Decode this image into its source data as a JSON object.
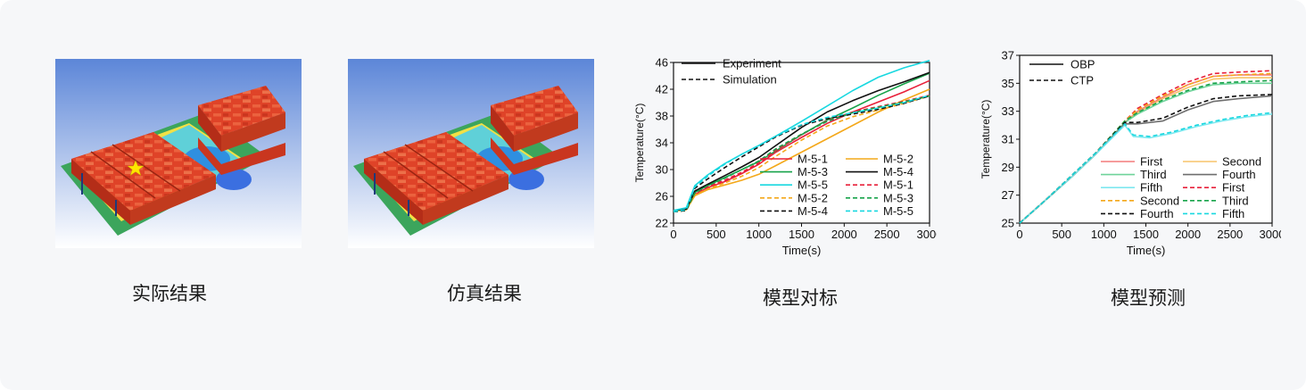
{
  "captions": {
    "p1": "实际结果",
    "p2": "仿真结果",
    "p3": "模型对标",
    "p4": "模型预测"
  },
  "colors": {
    "red": "#e8203a",
    "orange": "#f4a81a",
    "green": "#17a34a",
    "black": "#111111",
    "cyan": "#18d8e0",
    "gray": "#6e6e6e",
    "salmon": "#f47b7b",
    "lightorange": "#f7c46a",
    "lightgreen": "#6fd39a",
    "lightcyan": "#7ee8ef"
  },
  "chart_data": [
    {
      "type": "line",
      "title": "",
      "xlabel": "Time(s)",
      "ylabel": "Temperature(°C)",
      "xlim": [
        0,
        3000
      ],
      "ylim": [
        22,
        46
      ],
      "xticks": [
        0,
        500,
        1000,
        1500,
        2000,
        2500,
        3000
      ],
      "yticks": [
        22,
        26,
        30,
        34,
        38,
        42,
        46
      ],
      "legend_top": [
        "Experiment",
        "Simulation"
      ],
      "series": [
        {
          "name": "M-5-1",
          "style": "solid",
          "color": "#e8203a",
          "x": [
            0,
            150,
            250,
            400,
            600,
            800,
            1000,
            1200,
            1500,
            1800,
            2100,
            2400,
            2700,
            3000
          ],
          "y": [
            23.9,
            24.1,
            26.3,
            27.3,
            28.2,
            29.4,
            30.8,
            32.6,
            34.8,
            36.9,
            38.6,
            40.1,
            41.6,
            43.3
          ]
        },
        {
          "name": "M-5-2",
          "style": "solid",
          "color": "#f4a81a",
          "x": [
            0,
            150,
            250,
            400,
            600,
            800,
            1000,
            1200,
            1500,
            1800,
            2100,
            2400,
            2700,
            3000
          ],
          "y": [
            23.8,
            24.0,
            26.1,
            27.0,
            27.7,
            28.4,
            29.3,
            30.6,
            32.6,
            34.6,
            36.6,
            38.6,
            40.4,
            42.0
          ]
        },
        {
          "name": "M-5-3",
          "style": "solid",
          "color": "#17a34a",
          "x": [
            0,
            150,
            250,
            400,
            600,
            800,
            1000,
            1200,
            1500,
            1800,
            2100,
            2400,
            2700,
            3000
          ],
          "y": [
            23.9,
            24.1,
            26.6,
            27.6,
            28.8,
            30.0,
            31.2,
            32.8,
            35.2,
            37.4,
            39.2,
            41.1,
            42.8,
            44.4
          ]
        },
        {
          "name": "M-5-4",
          "style": "solid",
          "color": "#111111",
          "x": [
            0,
            150,
            250,
            400,
            600,
            800,
            1000,
            1200,
            1500,
            1800,
            2100,
            2400,
            2700,
            3000
          ],
          "y": [
            23.9,
            24.1,
            26.8,
            27.8,
            29.1,
            30.4,
            31.8,
            33.6,
            36.3,
            38.6,
            40.3,
            41.8,
            43.1,
            44.5
          ]
        },
        {
          "name": "M-5-5",
          "style": "solid",
          "color": "#18d8e0",
          "x": [
            0,
            150,
            250,
            400,
            600,
            800,
            1000,
            1200,
            1500,
            1800,
            2100,
            2400,
            2700,
            3000
          ],
          "y": [
            23.9,
            24.3,
            27.6,
            29.2,
            30.9,
            32.3,
            33.6,
            35.0,
            37.2,
            39.5,
            41.8,
            43.8,
            45.2,
            46.3
          ]
        },
        {
          "name": "M-5-1",
          "style": "dashed",
          "color": "#e8203a",
          "x": [
            0,
            150,
            250,
            400,
            600,
            800,
            1000,
            1200,
            1500,
            1800,
            2100,
            2400,
            2700,
            3000
          ],
          "y": [
            23.7,
            23.9,
            26.4,
            27.5,
            28.4,
            29.6,
            31.0,
            32.9,
            35.2,
            37.3,
            38.6,
            39.4,
            40.2,
            41.1
          ]
        },
        {
          "name": "M-5-2",
          "style": "dashed",
          "color": "#f4a81a",
          "x": [
            0,
            150,
            250,
            400,
            600,
            800,
            1000,
            1200,
            1500,
            1800,
            2100,
            2400,
            2700,
            3000
          ],
          "y": [
            23.7,
            23.9,
            26.2,
            27.1,
            28.0,
            29.0,
            30.3,
            32.0,
            34.4,
            36.5,
            37.9,
            38.9,
            39.9,
            41.0
          ]
        },
        {
          "name": "M-5-3",
          "style": "dashed",
          "color": "#17a34a",
          "x": [
            0,
            150,
            250,
            400,
            600,
            800,
            1000,
            1200,
            1500,
            1800,
            2100,
            2400,
            2700,
            3000
          ],
          "y": [
            23.7,
            23.9,
            26.5,
            27.6,
            28.7,
            30.0,
            31.3,
            33.1,
            35.3,
            37.2,
            38.5,
            39.3,
            40.1,
            41.0
          ]
        },
        {
          "name": "M-5-4",
          "style": "dashed",
          "color": "#111111",
          "x": [
            0,
            150,
            250,
            400,
            600,
            800,
            1000,
            1200,
            1500,
            1800,
            2100,
            2400,
            2700,
            3000
          ],
          "y": [
            23.7,
            23.9,
            27.2,
            28.6,
            30.3,
            31.9,
            33.4,
            34.9,
            36.6,
            37.6,
            38.3,
            39.0,
            39.9,
            41.0
          ]
        },
        {
          "name": "M-5-5",
          "style": "dashed",
          "color": "#18d8e0",
          "x": [
            0,
            150,
            250,
            400,
            600,
            800,
            1000,
            1200,
            1500,
            1800,
            2100,
            2400,
            2700,
            3000
          ],
          "y": [
            23.7,
            24.0,
            27.4,
            29.0,
            30.8,
            32.3,
            33.6,
            35.0,
            36.7,
            37.8,
            38.5,
            39.2,
            40.0,
            41.1
          ]
        }
      ]
    },
    {
      "type": "line",
      "title": "",
      "xlabel": "Time(s)",
      "ylabel": "Temperature(°C)",
      "xlim": [
        0,
        3000
      ],
      "ylim": [
        25,
        37
      ],
      "xticks": [
        0,
        500,
        1000,
        1500,
        2000,
        2500,
        3000
      ],
      "yticks": [
        25,
        27,
        29,
        31,
        33,
        35,
        37
      ],
      "legend_top": [
        "OBP",
        "CTP"
      ],
      "series": [
        {
          "name": "First",
          "style": "solid",
          "color": "#f47b7b",
          "x": [
            0,
            300,
            600,
            900,
            1250,
            1400,
            1700,
            2000,
            2300,
            2600,
            3000
          ],
          "y": [
            25.0,
            26.6,
            28.2,
            29.9,
            32.2,
            33.0,
            34.0,
            34.9,
            35.5,
            35.6,
            35.6
          ]
        },
        {
          "name": "Second",
          "style": "solid",
          "color": "#f7c46a",
          "x": [
            0,
            300,
            600,
            900,
            1250,
            1400,
            1700,
            2000,
            2300,
            2600,
            3000
          ],
          "y": [
            25.0,
            26.6,
            28.2,
            29.9,
            32.2,
            32.9,
            33.9,
            34.7,
            35.3,
            35.4,
            35.4
          ]
        },
        {
          "name": "Third",
          "style": "solid",
          "color": "#6fd39a",
          "x": [
            0,
            300,
            600,
            900,
            1250,
            1400,
            1700,
            2000,
            2300,
            2600,
            3000
          ],
          "y": [
            25.0,
            26.6,
            28.2,
            29.9,
            32.2,
            32.8,
            33.7,
            34.4,
            34.9,
            35.0,
            35.0
          ]
        },
        {
          "name": "Fourth",
          "style": "solid",
          "color": "#6e6e6e",
          "x": [
            0,
            300,
            600,
            900,
            1250,
            1400,
            1700,
            2000,
            2300,
            2600,
            3000
          ],
          "y": [
            25.0,
            26.6,
            28.2,
            29.9,
            32.1,
            32.1,
            32.3,
            33.1,
            33.7,
            33.9,
            34.1
          ]
        },
        {
          "name": "Fifth",
          "style": "solid",
          "color": "#7ee8ef",
          "x": [
            0,
            300,
            600,
            900,
            1250,
            1350,
            1550,
            1800,
            2100,
            2400,
            2700,
            3000
          ],
          "y": [
            25.0,
            26.6,
            28.2,
            29.9,
            32.0,
            31.2,
            31.1,
            31.4,
            31.9,
            32.3,
            32.6,
            32.8
          ]
        },
        {
          "name": "First",
          "style": "dashed",
          "color": "#e8203a",
          "x": [
            0,
            300,
            600,
            900,
            1250,
            1400,
            1700,
            2000,
            2300,
            2600,
            3000
          ],
          "y": [
            25.0,
            26.6,
            28.3,
            30.0,
            32.3,
            33.2,
            34.2,
            35.1,
            35.7,
            35.8,
            35.9
          ]
        },
        {
          "name": "Second",
          "style": "dashed",
          "color": "#f4a81a",
          "x": [
            0,
            300,
            600,
            900,
            1250,
            1400,
            1700,
            2000,
            2300,
            2600,
            3000
          ],
          "y": [
            25.0,
            26.6,
            28.3,
            30.0,
            32.3,
            33.1,
            34.1,
            34.9,
            35.5,
            35.6,
            35.7
          ]
        },
        {
          "name": "Third",
          "style": "dashed",
          "color": "#17a34a",
          "x": [
            0,
            300,
            600,
            900,
            1250,
            1400,
            1700,
            2000,
            2300,
            2600,
            3000
          ],
          "y": [
            25.0,
            26.6,
            28.3,
            30.0,
            32.3,
            32.9,
            33.8,
            34.5,
            35.0,
            35.1,
            35.2
          ]
        },
        {
          "name": "Fourth",
          "style": "dashed",
          "color": "#111111",
          "x": [
            0,
            300,
            600,
            900,
            1250,
            1400,
            1700,
            2000,
            2300,
            2600,
            3000
          ],
          "y": [
            25.0,
            26.6,
            28.3,
            30.0,
            32.2,
            32.2,
            32.5,
            33.3,
            33.9,
            34.1,
            34.2
          ]
        },
        {
          "name": "Fifth",
          "style": "dashed",
          "color": "#18d8e0",
          "x": [
            0,
            300,
            600,
            900,
            1250,
            1350,
            1550,
            1800,
            2100,
            2400,
            2700,
            3000
          ],
          "y": [
            25.0,
            26.6,
            28.3,
            30.0,
            32.1,
            31.3,
            31.2,
            31.5,
            32.0,
            32.4,
            32.7,
            32.9
          ]
        }
      ]
    }
  ]
}
